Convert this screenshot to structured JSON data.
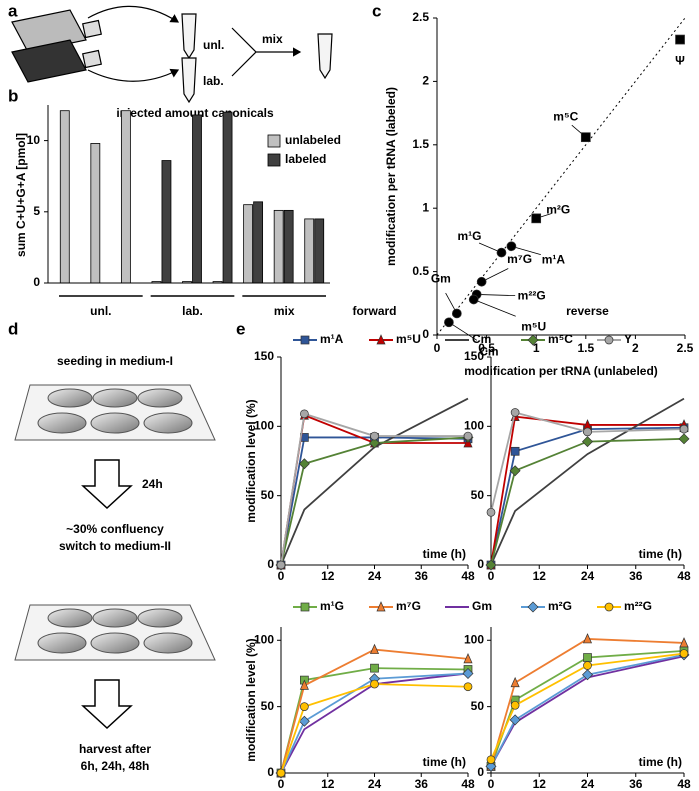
{
  "panel_labels": [
    "a",
    "b",
    "c",
    "d",
    "e"
  ],
  "panel_a": {
    "labels": [
      "unl.",
      "lab.",
      "mix"
    ]
  },
  "panel_d": {
    "steps": [
      "seeding in medium-I",
      "24h",
      "~30% confluency",
      "switch to medium-II",
      "harvest after",
      "6h, 24h, 48h"
    ]
  },
  "chart_data": [
    {
      "type": "bar",
      "title": "injected amount canonicals",
      "ylabel": "sum C+U+G+A [pmol]",
      "categories": [
        null,
        null,
        null,
        null,
        null,
        null,
        null,
        null,
        null
      ],
      "group_labels": [
        "unl.",
        "lab.",
        "mix"
      ],
      "series": [
        {
          "name": "unlabeled",
          "color": "#c0c0c0",
          "values": [
            12.1,
            9.8,
            12.1,
            0.1,
            0.1,
            0.1,
            5.5,
            5.1,
            4.5
          ]
        },
        {
          "name": "labeled",
          "color": "#404040",
          "values": [
            0,
            0,
            0,
            8.6,
            11.8,
            12.0,
            5.7,
            5.1,
            4.5
          ]
        }
      ],
      "ylim": [
        0,
        12.5
      ],
      "yticks": [
        0,
        5,
        10
      ],
      "legend": "upper right"
    },
    {
      "type": "scatter",
      "xlabel": "modification per tRNA (unlabeled)",
      "ylabel": "modification per tRNA (labeled)",
      "xlim": [
        0,
        2.5
      ],
      "ylim": [
        0,
        2.5
      ],
      "xticks": [
        0,
        0.5,
        1,
        1.5,
        2,
        2.5
      ],
      "yticks": [
        0,
        0.5,
        1,
        1.5,
        2,
        2.5
      ],
      "diagonal": true,
      "color": "#000000",
      "points": [
        {
          "label": "Ψ",
          "x": 2.45,
          "y": 2.33,
          "marker": "square"
        },
        {
          "label": "m⁵C",
          "x": 1.5,
          "y": 1.56,
          "marker": "square"
        },
        {
          "label": "m²G",
          "x": 1.0,
          "y": 0.92,
          "marker": "square"
        },
        {
          "label": "m¹A",
          "x": 0.75,
          "y": 0.7,
          "marker": "circle"
        },
        {
          "label": "m¹G",
          "x": 0.65,
          "y": 0.65,
          "marker": "circle"
        },
        {
          "label": "m⁷G",
          "x": 0.45,
          "y": 0.42,
          "marker": "circle"
        },
        {
          "label": "m²²G",
          "x": 0.4,
          "y": 0.32,
          "marker": "circle"
        },
        {
          "label": "m⁵U",
          "x": 0.37,
          "y": 0.28,
          "marker": "circle"
        },
        {
          "label": "Gm",
          "x": 0.2,
          "y": 0.17,
          "marker": "circle"
        },
        {
          "label": "Cm",
          "x": 0.12,
          "y": 0.1,
          "marker": "circle"
        }
      ]
    },
    {
      "type": "line",
      "xlabel": "time (h)",
      "ylabel": "modification level (%)",
      "x": [
        0,
        6,
        24,
        48
      ],
      "xlim": [
        0,
        48
      ],
      "xticks": [
        0,
        12,
        24,
        36,
        48
      ],
      "ylim": [
        0,
        150
      ],
      "yticks": [
        0,
        50,
        100,
        150
      ],
      "legend": [
        {
          "name": "m¹A",
          "color": "#2f5597",
          "marker": "square"
        },
        {
          "name": "m⁵U",
          "color": "#c00000",
          "marker": "triangle"
        },
        {
          "name": "Cm",
          "color": "#404040",
          "marker": "none"
        },
        {
          "name": "m⁵C",
          "color": "#548235",
          "marker": "diamond"
        },
        {
          "name": "Y",
          "color": "#a6a6a6",
          "marker": "circle"
        }
      ],
      "panels": [
        {
          "title": "forward",
          "series": [
            {
              "values": [
                0,
                92,
                92,
                91
              ]
            },
            {
              "values": [
                0,
                108,
                88,
                88
              ]
            },
            {
              "values": [
                0,
                40,
                85,
                120
              ]
            },
            {
              "values": [
                0,
                73,
                88,
                92
              ]
            },
            {
              "values": [
                0,
                109,
                93,
                93
              ]
            }
          ]
        },
        {
          "title": "reverse",
          "series": [
            {
              "values": [
                0,
                82,
                98,
                99
              ]
            },
            {
              "values": [
                0,
                107,
                101,
                101
              ]
            },
            {
              "values": [
                0,
                39,
                80,
                120
              ]
            },
            {
              "values": [
                0,
                68,
                89,
                91
              ]
            },
            {
              "values": [
                38,
                110,
                96,
                98
              ]
            }
          ]
        }
      ]
    },
    {
      "type": "line",
      "xlabel": "time (h)",
      "ylabel": "modification level (%)",
      "x": [
        0,
        6,
        24,
        48
      ],
      "xlim": [
        0,
        48
      ],
      "xticks": [
        0,
        12,
        24,
        36,
        48
      ],
      "ylim": [
        0,
        110
      ],
      "yticks": [
        0,
        50,
        100
      ],
      "legend": [
        {
          "name": "m¹G",
          "color": "#70ad47",
          "marker": "square"
        },
        {
          "name": "m⁷G",
          "color": "#ed7d31",
          "marker": "triangle"
        },
        {
          "name": "Gm",
          "color": "#7030a0",
          "marker": "none"
        },
        {
          "name": "m²G",
          "color": "#5b9bd5",
          "marker": "diamond"
        },
        {
          "name": "m²²G",
          "color": "#ffc000",
          "marker": "circle"
        }
      ],
      "panels": [
        {
          "series": [
            {
              "values": [
                0,
                70,
                79,
                78
              ]
            },
            {
              "values": [
                0,
                66,
                93,
                86
              ]
            },
            {
              "values": [
                0,
                33,
                67,
                75
              ]
            },
            {
              "values": [
                0,
                39,
                71,
                75
              ]
            },
            {
              "values": [
                0,
                50,
                67,
                65
              ]
            }
          ]
        },
        {
          "series": [
            {
              "values": [
                5,
                55,
                87,
                92
              ]
            },
            {
              "values": [
                5,
                68,
                101,
                98
              ]
            },
            {
              "values": [
                5,
                38,
                72,
                88
              ]
            },
            {
              "values": [
                5,
                40,
                74,
                89
              ]
            },
            {
              "values": [
                10,
                51,
                81,
                90
              ]
            }
          ]
        }
      ]
    }
  ]
}
